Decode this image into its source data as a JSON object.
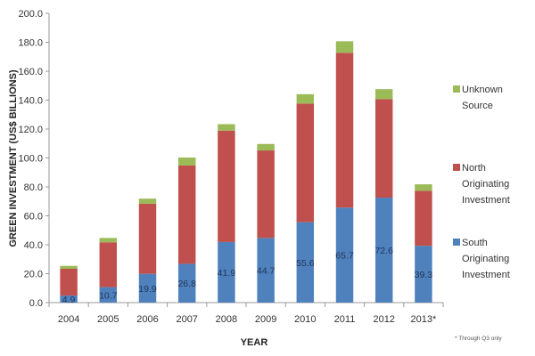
{
  "chart_data": {
    "type": "bar",
    "stacked": true,
    "title": "",
    "xlabel": "YEAR",
    "ylabel": "GREEN INVESTMENT (US$ BILLIONS)",
    "ylim": [
      0,
      200
    ],
    "yticks": [
      "0.0",
      "20.0",
      "40.0",
      "60.0",
      "80.0",
      "100.0",
      "120.0",
      "140.0",
      "160.0",
      "180.0",
      "200.0"
    ],
    "categories": [
      "2004",
      "2005",
      "2006",
      "2007",
      "2008",
      "2009",
      "2010",
      "2011",
      "2012",
      "2013*"
    ],
    "series": [
      {
        "name": "South Originating Investment",
        "color": "#4f81bd",
        "values": [
          4.9,
          10.7,
          19.9,
          26.8,
          41.9,
          44.7,
          55.6,
          65.7,
          72.6,
          39.3
        ],
        "labels": [
          "4.9",
          "10.7",
          "19.9",
          "26.8",
          "41.9",
          "44.7",
          "55.6",
          "65.7",
          "72.6",
          "39.3"
        ]
      },
      {
        "name": "North Originating Investment",
        "color": "#c0504d",
        "values": [
          18.5,
          31.0,
          48.5,
          68.0,
          77.0,
          60.5,
          82.0,
          107.0,
          68.0,
          38.0
        ]
      },
      {
        "name": "Unknown Source",
        "color": "#9bbb59",
        "values": [
          2.0,
          3.0,
          3.5,
          5.5,
          4.5,
          4.5,
          6.5,
          8.0,
          7.0,
          4.5
        ]
      }
    ],
    "legend_position": "right",
    "legend_order": [
      "Unknown Source",
      "North Originating Investment",
      "South Originating Investment"
    ],
    "legend_lines": {
      "Unknown Source": [
        "Unknown",
        "Source"
      ],
      "North Originating Investment": [
        "North",
        "Originating",
        "Investment"
      ],
      "South Originating Investment": [
        "South",
        "Originating",
        "Investment"
      ]
    },
    "gridlines": false,
    "footnote": "* Through Q3 only"
  }
}
